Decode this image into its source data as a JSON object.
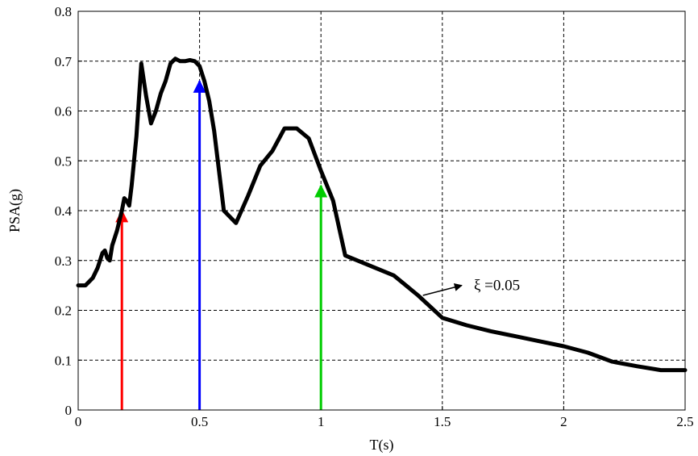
{
  "chart_data": {
    "type": "line",
    "title": "",
    "xlabel": "T(s)",
    "ylabel": "PSA(g)",
    "xlim": [
      0,
      2.5
    ],
    "ylim": [
      0,
      0.8
    ],
    "xticks": [
      "0",
      "0.5",
      "1",
      "1.5",
      "2",
      "2.5"
    ],
    "yticks": [
      "0",
      "0.1",
      "0.2",
      "0.3",
      "0.4",
      "0.5",
      "0.6",
      "0.7",
      "0.8"
    ],
    "grid": true,
    "series": [
      {
        "color": "#000000",
        "x": [
          0.0,
          0.03,
          0.06,
          0.08,
          0.1,
          0.11,
          0.12,
          0.13,
          0.14,
          0.16,
          0.18,
          0.19,
          0.2,
          0.21,
          0.22,
          0.24,
          0.26,
          0.28,
          0.3,
          0.32,
          0.34,
          0.36,
          0.38,
          0.4,
          0.42,
          0.44,
          0.46,
          0.48,
          0.5,
          0.52,
          0.54,
          0.56,
          0.58,
          0.6,
          0.65,
          0.7,
          0.75,
          0.8,
          0.85,
          0.9,
          0.95,
          1.0,
          1.05,
          1.1,
          1.2,
          1.3,
          1.4,
          1.5,
          1.6,
          1.7,
          1.8,
          1.9,
          2.0,
          2.1,
          2.2,
          2.3,
          2.4,
          2.5
        ],
        "y": [
          0.25,
          0.25,
          0.265,
          0.285,
          0.315,
          0.32,
          0.305,
          0.3,
          0.33,
          0.36,
          0.4,
          0.425,
          0.42,
          0.41,
          0.45,
          0.55,
          0.695,
          0.63,
          0.575,
          0.6,
          0.635,
          0.66,
          0.695,
          0.705,
          0.7,
          0.7,
          0.702,
          0.7,
          0.69,
          0.66,
          0.62,
          0.56,
          0.48,
          0.4,
          0.375,
          0.43,
          0.49,
          0.52,
          0.565,
          0.565,
          0.545,
          0.48,
          0.42,
          0.31,
          0.29,
          0.27,
          0.23,
          0.185,
          0.17,
          0.158,
          0.148,
          0.138,
          0.128,
          0.115,
          0.097,
          0.088,
          0.08,
          0.08
        ]
      }
    ],
    "arrows": [
      {
        "x": 0.18,
        "y_from": 0,
        "y_to": 0.4,
        "color": "#ff0000"
      },
      {
        "x": 0.5,
        "y_from": 0,
        "y_to": 0.66,
        "color": "#0000ff"
      },
      {
        "x": 1.0,
        "y_from": 0,
        "y_to": 0.45,
        "color": "#00cc00"
      }
    ],
    "annotation": {
      "text": "ξ =0.05",
      "x": 1.63,
      "y": 0.25,
      "arrow_from": [
        1.42,
        0.23
      ],
      "arrow_to": [
        1.58,
        0.25
      ]
    }
  }
}
